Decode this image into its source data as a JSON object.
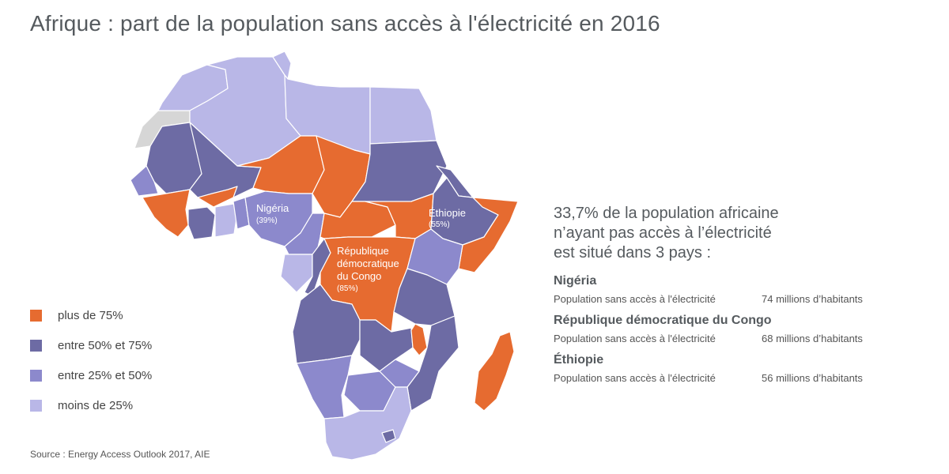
{
  "title": "Afrique : part de la population sans accès à l'électricité en 2016",
  "colors": {
    "plus_75": "#e66b30",
    "entre_50_75": "#6d6ba4",
    "entre_25_50": "#8c89cc",
    "moins_25": "#b9b7e7",
    "no_data": "#d6d6d6"
  },
  "legend": [
    {
      "label": "plus de 75%",
      "color": "#e66b30"
    },
    {
      "label": "entre 50% et 75%",
      "color": "#6d6ba4"
    },
    {
      "label": "entre 25% et 50%",
      "color": "#8c89cc"
    },
    {
      "label": "moins de 25%",
      "color": "#b9b7e7"
    }
  ],
  "map_labels": {
    "nigeria": {
      "name": "Nigéria",
      "pct": "(39%)"
    },
    "rdc": {
      "name_line1": "République",
      "name_line2": "démocratique",
      "name_line3": "du Congo",
      "pct": "(85%)"
    },
    "ethiopie": {
      "name": "Éthiopie",
      "pct": "(55%)"
    }
  },
  "panel": {
    "headline_line1": "33,7% de la population africaine",
    "headline_line2": "n’ayant pas accès à l’électricité",
    "headline_line3": "est situé dans 3 pays :",
    "countries": [
      {
        "name": "Nigéria",
        "stat_label": "Population sans accès à l'électricité",
        "stat_value": "74 millions d’habitants"
      },
      {
        "name": "République démocratique du Congo",
        "stat_label": "Population sans accès à l'électricité",
        "stat_value": "68 millions d’habitants"
      },
      {
        "name": "Éthiopie",
        "stat_label": "Population sans accès à l'électricité",
        "stat_value": "56 millions d’habitants"
      }
    ]
  },
  "source": "Source : Energy Access Outlook 2017, AIE"
}
